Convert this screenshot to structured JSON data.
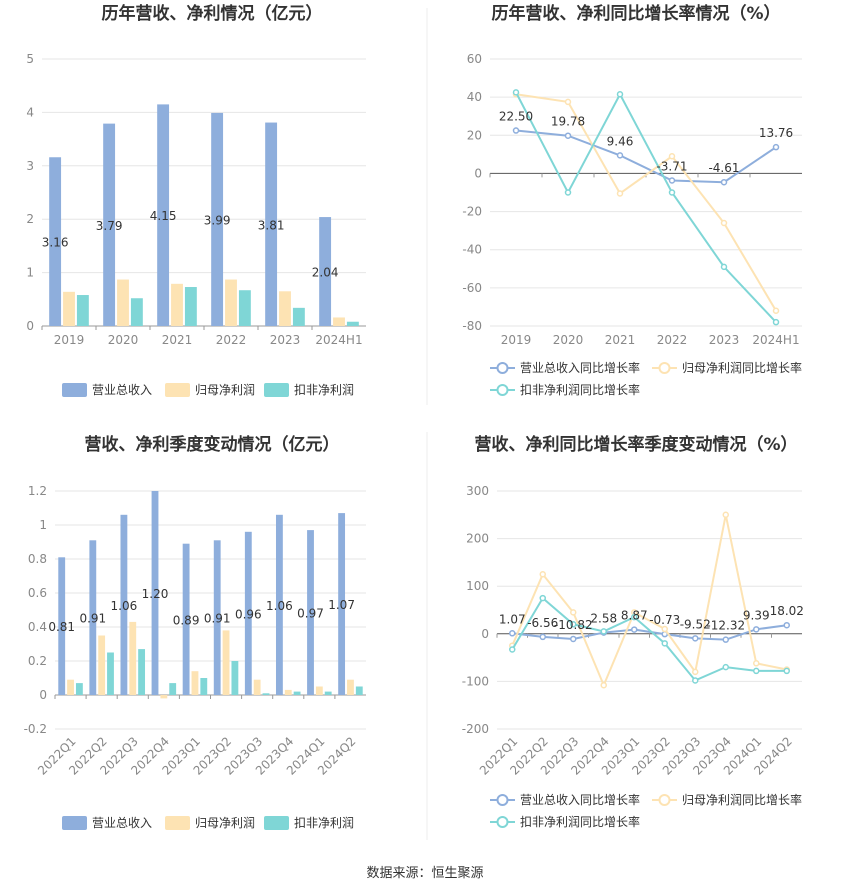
{
  "source": "数据来源：恒生聚源",
  "colors": {
    "revenue": "#8eaedc",
    "net_profit": "#fde3b3",
    "deducted_profit": "#7fd6d6",
    "grid": "#e6e6e6",
    "axis_text": "#888888",
    "title_text": "#333333"
  },
  "chart_data": [
    {
      "id": "annual-bar",
      "type": "bar",
      "title": "历年营收、净利情况（亿元）",
      "categories": [
        "2019",
        "2020",
        "2021",
        "2022",
        "2023",
        "2024H1"
      ],
      "ylim": [
        0,
        5
      ],
      "yticks": [
        "0",
        "1",
        "2",
        "3",
        "4",
        "5"
      ],
      "series": [
        {
          "name": "营业总收入",
          "values": [
            3.16,
            3.79,
            4.15,
            3.99,
            3.81,
            2.04
          ]
        },
        {
          "name": "归母净利润",
          "values": [
            0.64,
            0.87,
            0.79,
            0.87,
            0.65,
            0.16
          ]
        },
        {
          "name": "扣非净利润",
          "values": [
            0.58,
            0.52,
            0.73,
            0.67,
            0.34,
            0.08
          ]
        }
      ],
      "data_labels": [
        "3.16",
        "3.79",
        "4.15",
        "3.99",
        "3.81",
        "2.04"
      ],
      "legend": "bottom"
    },
    {
      "id": "annual-line",
      "type": "line",
      "title": "历年营收、净利同比增长率情况（%）",
      "categories": [
        "2019",
        "2020",
        "2021",
        "2022",
        "2023",
        "2024H1"
      ],
      "ylim": [
        -80,
        60
      ],
      "yticks": [
        "-80",
        "-60",
        "-40",
        "-20",
        "0",
        "20",
        "40",
        "60"
      ],
      "series": [
        {
          "name": "营业总收入同比增长率",
          "values": [
            22.5,
            19.78,
            9.46,
            -3.71,
            -4.61,
            13.76
          ]
        },
        {
          "name": "归母净利润同比增长率",
          "values": [
            41.5,
            37.5,
            -10.5,
            9.0,
            -26.0,
            -72.0
          ]
        },
        {
          "name": "扣非净利润同比增长率",
          "values": [
            42.5,
            -10.0,
            41.5,
            -10.0,
            -49.0,
            -78.0
          ]
        }
      ],
      "data_labels": [
        "22.50",
        "19.78",
        "9.46",
        "-3.71",
        "-4.61",
        "13.76"
      ],
      "legend": "bottom"
    },
    {
      "id": "quarterly-bar",
      "type": "bar",
      "title": "营收、净利季度变动情况（亿元）",
      "categories": [
        "2022Q1",
        "2022Q2",
        "2022Q3",
        "2022Q4",
        "2023Q1",
        "2023Q2",
        "2023Q3",
        "2023Q4",
        "2024Q1",
        "2024Q2"
      ],
      "ylim": [
        -0.2,
        1.2
      ],
      "yticks": [
        "-0.2",
        "0",
        "0.2",
        "0.4",
        "0.6",
        "0.8",
        "1",
        "1.2"
      ],
      "series": [
        {
          "name": "营业总收入",
          "values": [
            0.81,
            0.91,
            1.06,
            1.2,
            0.89,
            0.91,
            0.96,
            1.06,
            0.97,
            1.07
          ]
        },
        {
          "name": "归母净利润",
          "values": [
            0.09,
            0.35,
            0.43,
            -0.02,
            0.14,
            0.38,
            0.09,
            0.03,
            0.05,
            0.09
          ]
        },
        {
          "name": "扣非净利润",
          "values": [
            0.07,
            0.25,
            0.27,
            0.07,
            0.1,
            0.2,
            0.01,
            0.02,
            0.02,
            0.05
          ]
        }
      ],
      "data_labels": [
        "0.81",
        "0.91",
        "1.06",
        "1.20",
        "0.89",
        "0.91",
        "0.96",
        "1.06",
        "0.97",
        "1.07"
      ],
      "legend": "bottom"
    },
    {
      "id": "quarterly-line",
      "type": "line",
      "title": "营收、净利同比增长率季度变动情况（%）",
      "categories": [
        "2022Q1",
        "2022Q2",
        "2022Q3",
        "2022Q4",
        "2023Q1",
        "2023Q2",
        "2023Q3",
        "2023Q4",
        "2024Q1",
        "2024Q2"
      ],
      "ylim": [
        -200,
        300
      ],
      "yticks": [
        "-200",
        "-100",
        "0",
        "100",
        "200",
        "300"
      ],
      "series": [
        {
          "name": "营业总收入同比增长率",
          "values": [
            1.07,
            -6.56,
            -10.82,
            2.58,
            8.87,
            -0.73,
            -9.52,
            -12.32,
            9.39,
            18.02
          ]
        },
        {
          "name": "归母净利润同比增长率",
          "values": [
            -25,
            125,
            45,
            -108,
            45,
            10,
            -80,
            250,
            -62,
            -75
          ]
        },
        {
          "name": "扣非净利润同比增长率",
          "values": [
            -33,
            75,
            20,
            5,
            35,
            -20,
            -98,
            -70,
            -78,
            -78
          ]
        }
      ],
      "data_labels": [
        "1.07",
        "-6.56",
        "-10.82",
        "2.58",
        "8.87",
        "-0.73",
        "-9.52",
        "-12.32",
        "9.39",
        "18.02"
      ],
      "legend": "bottom"
    }
  ]
}
